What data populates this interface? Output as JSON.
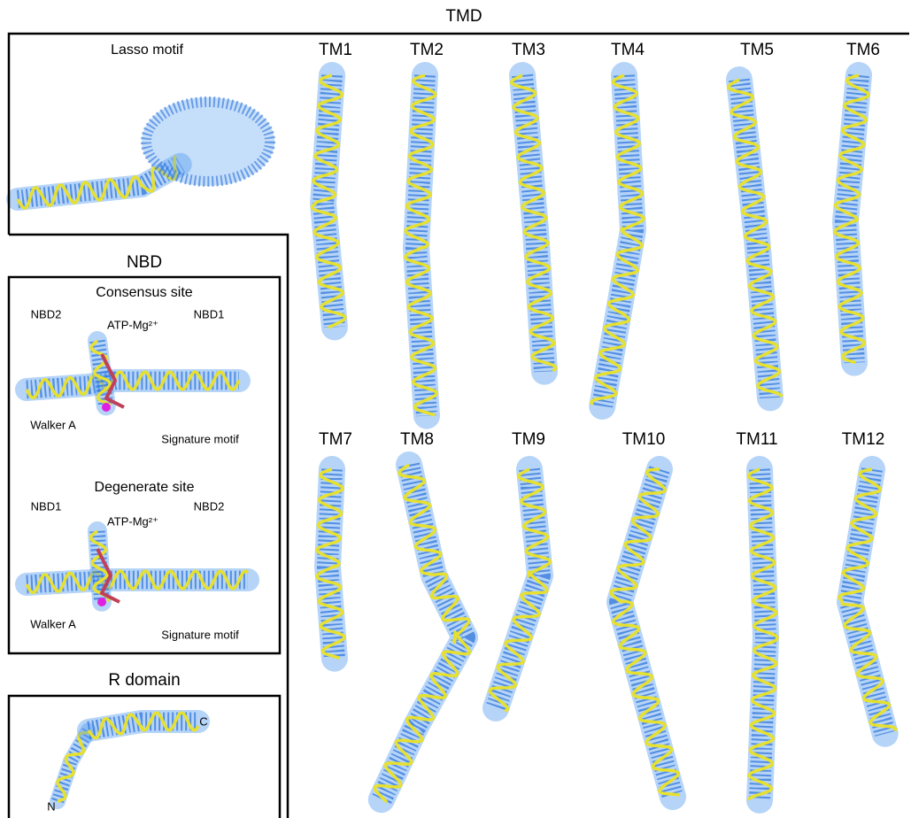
{
  "tmd": {
    "title": "TMD",
    "lasso": "Lasso motif",
    "helices_top": [
      "TM1",
      "TM2",
      "TM3",
      "TM4",
      "TM5",
      "TM6"
    ],
    "helices_bottom": [
      "TM7",
      "TM8",
      "TM9",
      "TM10",
      "TM11",
      "TM12"
    ]
  },
  "nbd": {
    "title": "NBD",
    "consensus": {
      "title": "Consensus site",
      "left": "NBD2",
      "ligand": "ATP-Mg²⁺",
      "right": "NBD1",
      "walker": "Walker A",
      "signature": "Signature motif"
    },
    "degenerate": {
      "title": "Degenerate site",
      "left": "NBD1",
      "ligand": "ATP-Mg²⁺",
      "right": "NBD2",
      "walker": "Walker A",
      "signature": "Signature motif"
    }
  },
  "r_domain": {
    "title": "R domain",
    "n_term": "N",
    "c_term": "C"
  }
}
